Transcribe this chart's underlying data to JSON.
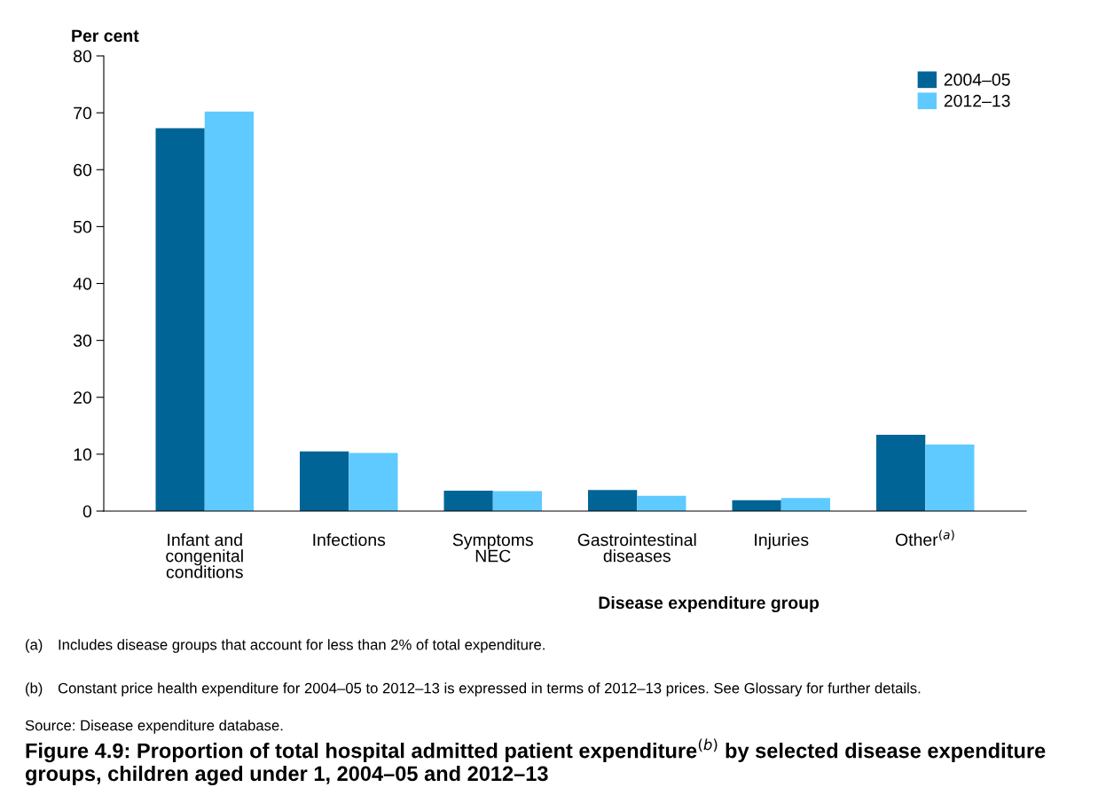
{
  "chart_data": {
    "type": "bar",
    "title": "Figure 4.9: Proportion of total hospital admitted patient expenditure$^{(b)}$ by selected disease expenditure groups, children aged under 1, 2004–05 and 2012–13",
    "xlabel": "Disease expenditure group",
    "ylabel": "Per cent",
    "categories": [
      "Infant and\ncongenital\nconditions",
      "Infections",
      "Symptoms\nNEC",
      "Gastrointestinal\ndiseases",
      "Injuries",
      "Other$^{(a)}$"
    ],
    "series": [
      {
        "name": "2004–05",
        "color": "#006496",
        "values": [
          67.3,
          10.5,
          3.6,
          3.7,
          1.9,
          13.4
        ]
      },
      {
        "name": "2012–13",
        "color": "#5fcaff",
        "values": [
          70.2,
          10.2,
          3.5,
          2.7,
          2.3,
          11.7
        ]
      }
    ],
    "ylim": [
      0,
      80
    ],
    "yticks": [
      0,
      10,
      20,
      30,
      40,
      50,
      60,
      70,
      80
    ],
    "grid": false,
    "legend": "top right",
    "annotations": [
      "(a) Includes disease groups that account for less than 2% of total expenditure.",
      "(b) Constant price health expenditure for 2004–05 to 2012–13 is expressed in terms of 2012–13 prices. See Glossary for further details.",
      "Source: Disease expenditure database."
    ]
  }
}
